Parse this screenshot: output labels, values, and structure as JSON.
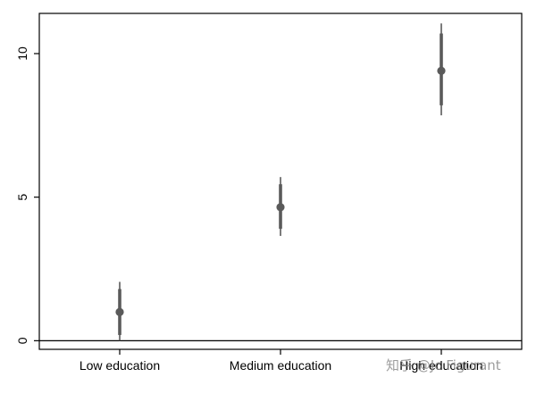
{
  "chart_data": {
    "type": "scatter",
    "title": "",
    "xlabel": "",
    "ylabel": "",
    "categories": [
      "Low education",
      "Medium education",
      "High education"
    ],
    "estimates": [
      1.0,
      4.65,
      9.4
    ],
    "ci_95": [
      [
        0.0,
        2.05
      ],
      [
        3.65,
        5.7
      ],
      [
        7.85,
        11.05
      ]
    ],
    "ci_90": [
      [
        0.2,
        1.8
      ],
      [
        3.9,
        5.45
      ],
      [
        8.2,
        10.7
      ]
    ],
    "yticks": [
      0,
      5,
      10
    ],
    "ylim": [
      -0.3,
      11.4
    ],
    "reference_line": 0,
    "grid": false,
    "colors": {
      "marker": "#5a5a5a",
      "axis": "#000000"
    }
  },
  "watermark": {
    "text": "知乎 @Jc Figurant"
  }
}
